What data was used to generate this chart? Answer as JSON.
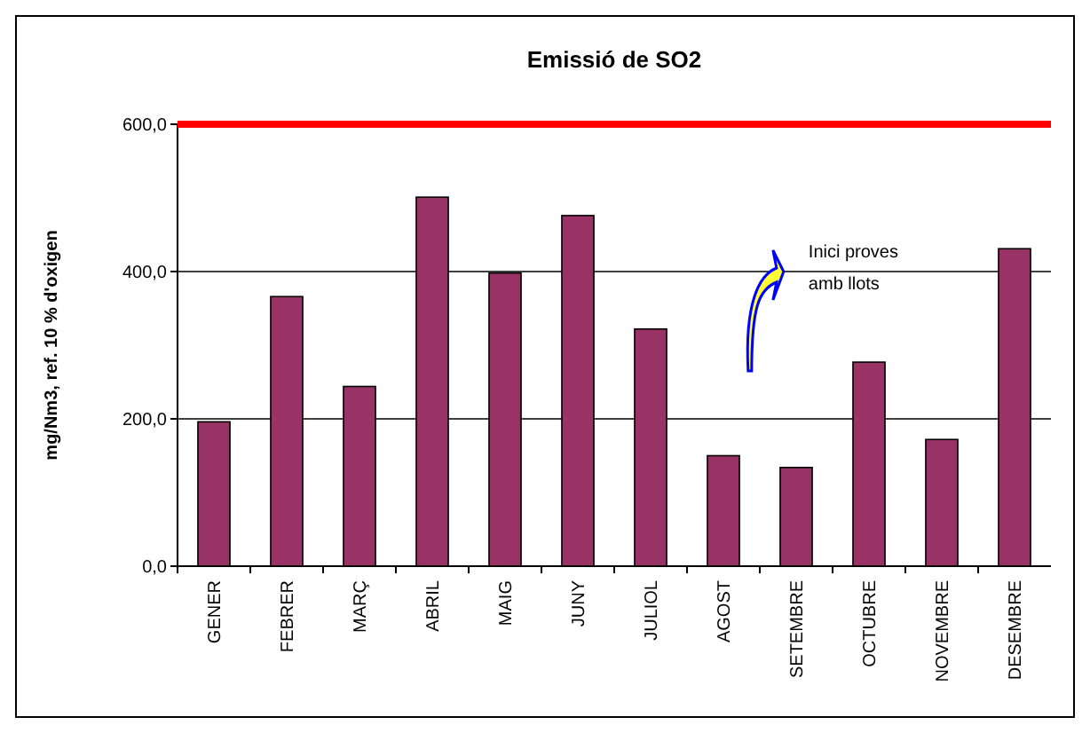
{
  "chart_data": {
    "type": "bar",
    "title": "Emissió de SO2",
    "ylabel": "mg/Nm3, ref. 10 % d'oxigen",
    "categories": [
      "GENER",
      "FEBRER",
      "MARÇ",
      "ABRIL",
      "MAIG",
      "JUNY",
      "JULIOL",
      "AGOST",
      "SETEMBRE",
      "OCTUBRE",
      "NOVEMBRE",
      "DESEMBRE"
    ],
    "series": [
      {
        "color": "#993366",
        "values": [
          196,
          366,
          244,
          501,
          398,
          476,
          322,
          150,
          134,
          277,
          172,
          431
        ]
      }
    ],
    "ylim": [
      0,
      600
    ],
    "yticks": [
      {
        "value": 0,
        "label": "0,0"
      },
      {
        "value": 200,
        "label": "200,0"
      },
      {
        "value": 400,
        "label": "400,0"
      },
      {
        "value": 600,
        "label": "600,0"
      }
    ],
    "grid": "y",
    "ref_lines": [
      {
        "axis": "y",
        "value": 600,
        "color": "#ff0000"
      }
    ],
    "annotations": [
      "Inici proves amb llots"
    ]
  }
}
